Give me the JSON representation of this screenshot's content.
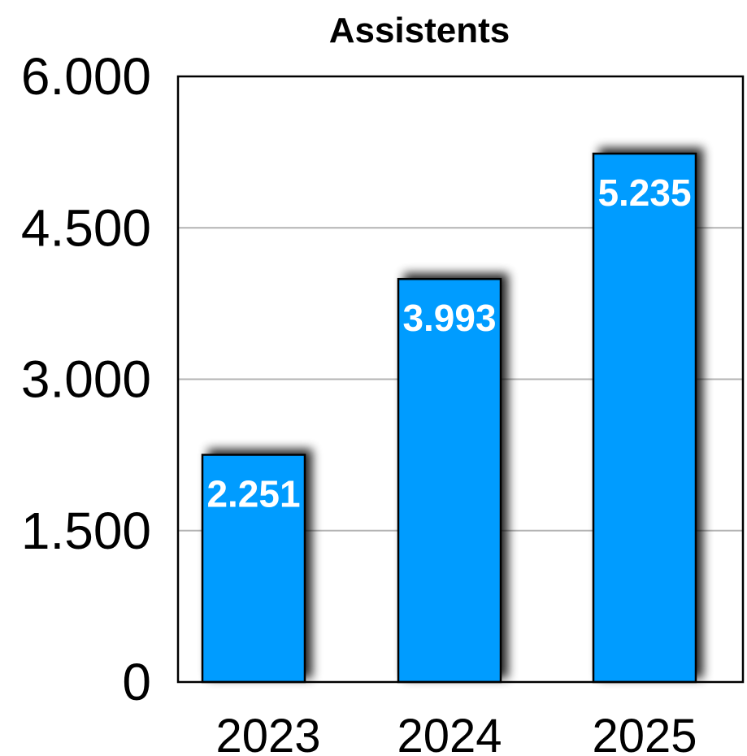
{
  "chart_data": {
    "type": "bar",
    "title": "Assistents",
    "categories": [
      "2023",
      "2024",
      "2025"
    ],
    "values": [
      2251,
      3993,
      5235
    ],
    "value_labels": [
      "2.251",
      "3.993",
      "5.235"
    ],
    "yticks": [
      "0",
      "1.500",
      "3.000",
      "4.500",
      "6.000"
    ],
    "ylim": [
      0,
      6000
    ],
    "grid": true,
    "bar_color": "#009cff",
    "xlabel": "",
    "ylabel": ""
  }
}
